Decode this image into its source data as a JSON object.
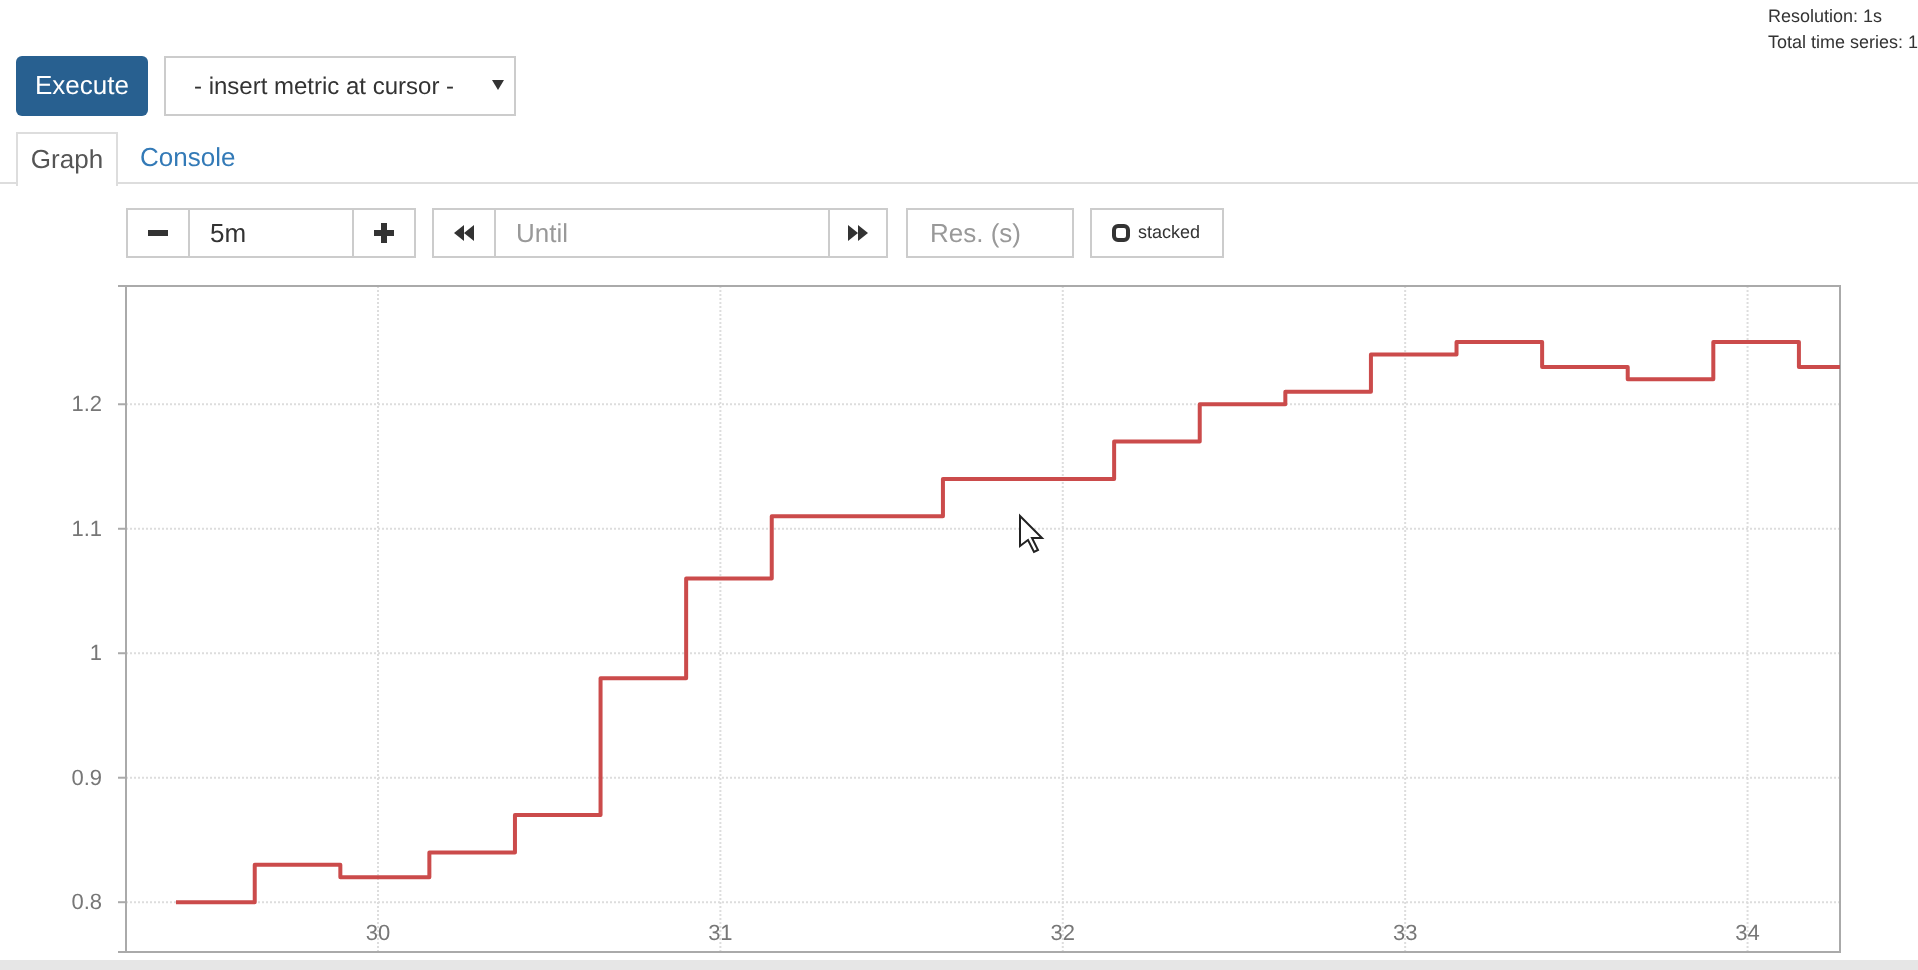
{
  "chart_data": {
    "type": "step",
    "x": [
      29.41,
      29.64,
      29.89,
      30.15,
      30.4,
      30.65,
      30.9,
      31.15,
      31.65,
      32.15,
      32.4,
      32.65,
      32.9,
      33.15,
      33.4,
      33.65,
      33.9,
      34.15,
      34.27
    ],
    "series": [
      {
        "color": "#cb4b4b",
        "values": [
          0.8,
          0.83,
          0.82,
          0.84,
          0.87,
          0.98,
          1.06,
          1.11,
          1.14,
          1.17,
          1.2,
          1.21,
          1.24,
          1.25,
          1.23,
          1.22,
          1.25,
          1.23,
          1.23
        ]
      }
    ],
    "xlim": [
      29.264,
      34.27
    ],
    "xticks": [
      30,
      31,
      32,
      33,
      34
    ],
    "ylim": [
      0.76,
      1.295
    ],
    "yticks": [
      0.8,
      0.9,
      1,
      1.1,
      1.2
    ],
    "grid": true,
    "annotations": [
      "Resolution: 1s",
      "Total time series: 1",
      "Execute",
      "- insert metric at cursor -",
      "Graph",
      "Console",
      "5m",
      "Until",
      "Res. (s)",
      "stacked"
    ]
  }
}
